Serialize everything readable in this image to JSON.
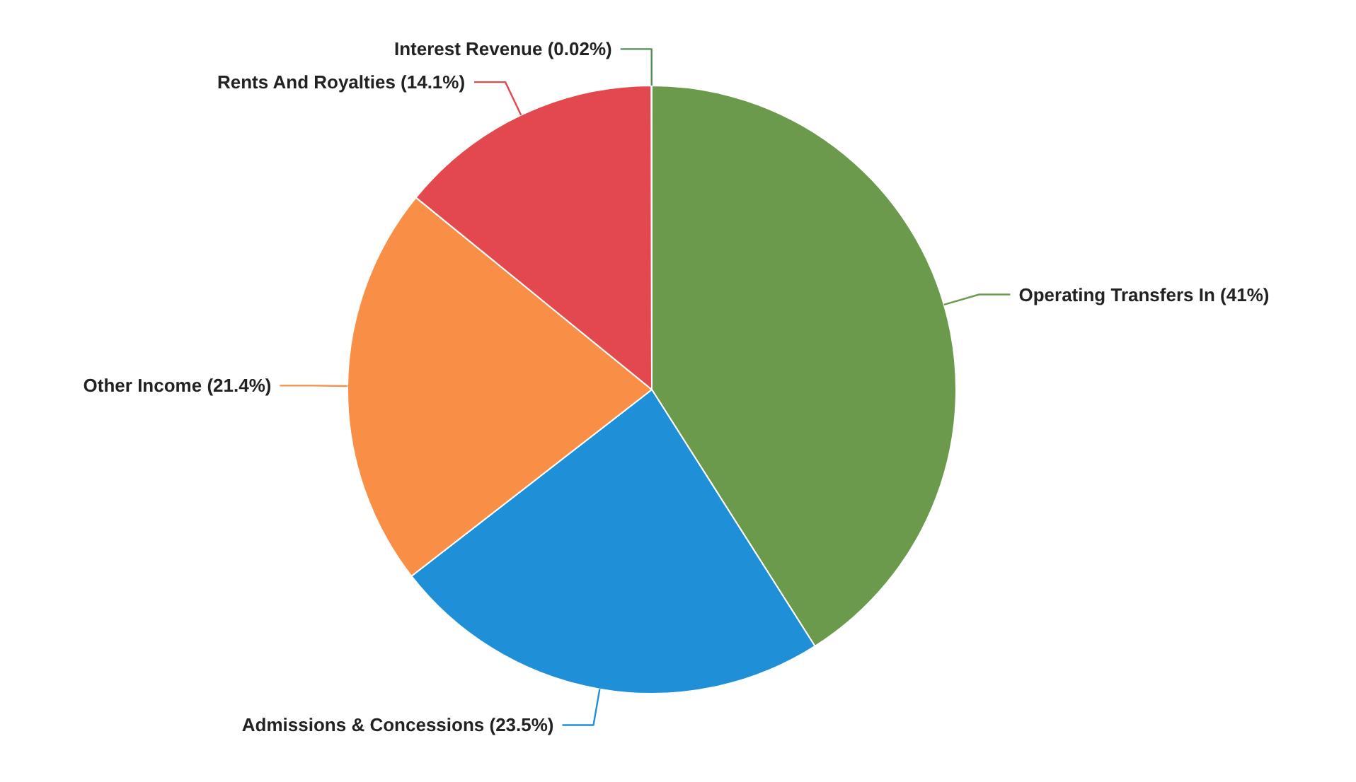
{
  "chart_data": {
    "type": "pie",
    "categories": [
      "Operating Transfers In (41%)",
      "Admissions & Concessions (23.5%)",
      "Other Income (21.4%)",
      "Rents And Royalties (14.1%)",
      "Interest Revenue (0.02%)"
    ],
    "values": [
      41,
      23.5,
      21.4,
      14.1,
      0.02
    ],
    "colors": [
      "#6b9a4c",
      "#1f90d8",
      "#f98f47",
      "#e4484f",
      "#4f8f55"
    ]
  }
}
